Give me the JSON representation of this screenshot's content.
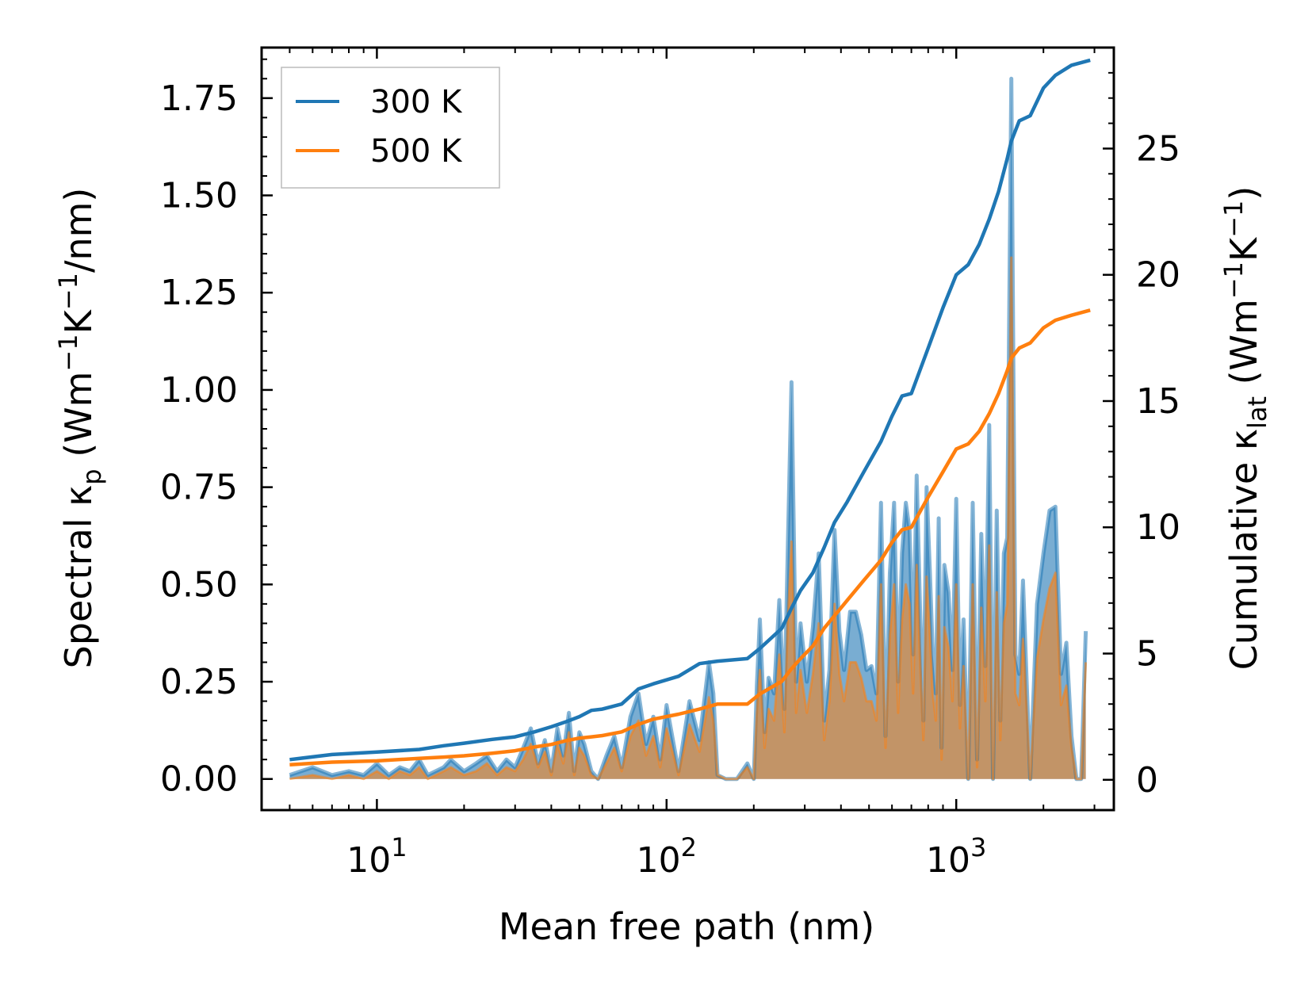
{
  "chart_data": {
    "type": "line",
    "title": "",
    "xlabel": "Mean free path (nm)",
    "ylabel_left": {
      "main": "Spectral κ",
      "sub": "p",
      "unit_open": " (Wm",
      "sup1": "−1",
      "mid": "K",
      "sup2": "−1",
      "unit_close": "/nm)"
    },
    "ylabel_right": {
      "main": "Cumulative κ",
      "sub": "lat",
      "unit_open": " (Wm",
      "sup1": "−1",
      "mid": "K",
      "sup2": "−1",
      "unit_close": ")"
    },
    "xscale": "log",
    "xlim": [
      4,
      3500
    ],
    "ylim_left": [
      -0.08,
      1.88
    ],
    "ylim_right": [
      -1.2,
      29.0
    ],
    "x_ticks": [
      {
        "value": 10,
        "base": "10",
        "exp": "1"
      },
      {
        "value": 100,
        "base": "10",
        "exp": "2"
      },
      {
        "value": 1000,
        "base": "10",
        "exp": "3"
      }
    ],
    "left_ticks": [
      0.0,
      0.25,
      0.5,
      0.75,
      1.0,
      1.25,
      1.5,
      1.75
    ],
    "left_tick_labels": [
      "0.00",
      "0.25",
      "0.50",
      "0.75",
      "1.00",
      "1.25",
      "1.50",
      "1.75"
    ],
    "right_ticks": [
      0,
      5,
      10,
      15,
      20,
      25
    ],
    "right_tick_labels": [
      "0",
      "5",
      "10",
      "15",
      "20",
      "25"
    ],
    "legend_position": "top-left",
    "series": [
      {
        "name": "300 K",
        "color": "#1f77b4",
        "cumulative_x": [
          5,
          7,
          10,
          14,
          17,
          20,
          25,
          30,
          35,
          40,
          45,
          50,
          55,
          60,
          70,
          80,
          90,
          110,
          130,
          150,
          190,
          210,
          250,
          270,
          290,
          320,
          350,
          380,
          420,
          480,
          550,
          600,
          650,
          700,
          800,
          900,
          1000,
          1100,
          1200,
          1300,
          1400,
          1500,
          1550,
          1650,
          1800,
          2000,
          2200,
          2500,
          2900
        ],
        "cumulative_y": [
          0.8,
          1.0,
          1.1,
          1.2,
          1.35,
          1.45,
          1.6,
          1.7,
          1.9,
          2.1,
          2.3,
          2.5,
          2.75,
          2.8,
          3.0,
          3.6,
          3.8,
          4.1,
          4.6,
          4.7,
          4.8,
          5.2,
          6.0,
          6.8,
          7.5,
          8.2,
          9.2,
          10.2,
          11.0,
          12.2,
          13.4,
          14.4,
          15.2,
          15.3,
          17.1,
          18.7,
          20.0,
          20.4,
          21.2,
          22.2,
          23.3,
          24.6,
          25.3,
          26.1,
          26.3,
          27.4,
          27.9,
          28.3,
          28.5
        ],
        "spectral_x": [
          5,
          6,
          7,
          8,
          9,
          10,
          11,
          12,
          13,
          14,
          15,
          17,
          18,
          20,
          22,
          24,
          26,
          28,
          30,
          32,
          34,
          36,
          38,
          40,
          42,
          44,
          46,
          48,
          50,
          52,
          55,
          58,
          62,
          66,
          70,
          75,
          80,
          85,
          90,
          95,
          100,
          110,
          120,
          130,
          140,
          145,
          150,
          160,
          175,
          190,
          200,
          205,
          210,
          218,
          225,
          235,
          245,
          255,
          262,
          270,
          280,
          290,
          305,
          320,
          335,
          350,
          365,
          380,
          395,
          410,
          430,
          450,
          470,
          490,
          510,
          530,
          550,
          570,
          590,
          610,
          630,
          650,
          670,
          690,
          710,
          730,
          750,
          770,
          790,
          810,
          830,
          850,
          870,
          890,
          910,
          940,
          970,
          1000,
          1030,
          1060,
          1100,
          1140,
          1180,
          1220,
          1260,
          1300,
          1340,
          1380,
          1420,
          1460,
          1500,
          1550,
          1600,
          1650,
          1700,
          1800,
          1900,
          2000,
          2100,
          2200,
          2300,
          2400,
          2500,
          2600,
          2700,
          2800
        ],
        "spectral_y": [
          0.01,
          0.03,
          0.01,
          0.02,
          0.01,
          0.04,
          0.01,
          0.03,
          0.02,
          0.05,
          0.01,
          0.03,
          0.05,
          0.02,
          0.04,
          0.06,
          0.02,
          0.05,
          0.03,
          0.08,
          0.13,
          0.04,
          0.1,
          0.02,
          0.13,
          0.06,
          0.17,
          0.02,
          0.12,
          0.09,
          0.02,
          0.0,
          0.06,
          0.11,
          0.03,
          0.16,
          0.22,
          0.09,
          0.16,
          0.05,
          0.19,
          0.02,
          0.2,
          0.1,
          0.3,
          0.22,
          0.01,
          0.0,
          0.0,
          0.04,
          0.0,
          0.24,
          0.41,
          0.12,
          0.26,
          0.22,
          0.46,
          0.18,
          0.58,
          1.02,
          0.25,
          0.4,
          0.25,
          0.39,
          0.58,
          0.15,
          0.28,
          0.64,
          0.38,
          0.28,
          0.43,
          0.43,
          0.37,
          0.28,
          0.29,
          0.22,
          0.71,
          0.11,
          0.53,
          0.71,
          0.25,
          0.58,
          0.71,
          0.64,
          0.32,
          0.78,
          0.44,
          0.15,
          0.75,
          0.54,
          0.32,
          0.22,
          0.67,
          0.08,
          0.55,
          0.48,
          0.28,
          0.72,
          0.19,
          0.41,
          0.0,
          0.71,
          0.05,
          0.63,
          0.29,
          0.91,
          0.0,
          0.69,
          0.15,
          0.58,
          0.62,
          1.8,
          0.32,
          0.27,
          0.51,
          0.0,
          0.45,
          0.58,
          0.69,
          0.7,
          0.27,
          0.35,
          0.11,
          0.0,
          0.0,
          0.38
        ],
        "spectral_y_500": [
          0.0,
          0.01,
          0.0,
          0.01,
          0.0,
          0.02,
          0.0,
          0.02,
          0.01,
          0.03,
          0.0,
          0.02,
          0.03,
          0.01,
          0.02,
          0.04,
          0.01,
          0.03,
          0.02,
          0.05,
          0.09,
          0.03,
          0.07,
          0.01,
          0.09,
          0.04,
          0.12,
          0.01,
          0.08,
          0.06,
          0.01,
          0.0,
          0.04,
          0.08,
          0.02,
          0.11,
          0.15,
          0.06,
          0.11,
          0.03,
          0.13,
          0.01,
          0.14,
          0.07,
          0.21,
          0.15,
          0.01,
          0.0,
          0.0,
          0.03,
          0.0,
          0.17,
          0.28,
          0.08,
          0.18,
          0.15,
          0.32,
          0.12,
          0.4,
          0.61,
          0.17,
          0.28,
          0.17,
          0.27,
          0.4,
          0.1,
          0.2,
          0.45,
          0.27,
          0.2,
          0.3,
          0.3,
          0.26,
          0.2,
          0.2,
          0.15,
          0.5,
          0.08,
          0.37,
          0.5,
          0.17,
          0.41,
          0.5,
          0.45,
          0.22,
          0.55,
          0.31,
          0.1,
          0.52,
          0.38,
          0.22,
          0.15,
          0.47,
          0.05,
          0.39,
          0.34,
          0.2,
          0.5,
          0.13,
          0.29,
          0.0,
          0.5,
          0.03,
          0.44,
          0.2,
          0.6,
          0.0,
          0.48,
          0.1,
          0.4,
          0.45,
          1.34,
          0.22,
          0.19,
          0.36,
          0.0,
          0.31,
          0.41,
          0.49,
          0.53,
          0.19,
          0.24,
          0.08,
          0.0,
          0.0,
          0.3
        ]
      },
      {
        "name": "500 K",
        "color": "#ff7f0e",
        "cumulative_x": [
          5,
          7,
          10,
          14,
          17,
          20,
          25,
          30,
          35,
          40,
          45,
          50,
          55,
          60,
          70,
          80,
          90,
          110,
          130,
          150,
          190,
          210,
          250,
          270,
          290,
          320,
          350,
          380,
          420,
          480,
          550,
          600,
          650,
          700,
          800,
          900,
          1000,
          1100,
          1200,
          1300,
          1400,
          1500,
          1550,
          1650,
          1800,
          2000,
          2200,
          2500,
          2900
        ],
        "cumulative_y": [
          0.6,
          0.7,
          0.75,
          0.85,
          0.9,
          0.95,
          1.05,
          1.15,
          1.3,
          1.4,
          1.55,
          1.65,
          1.7,
          1.75,
          1.9,
          2.2,
          2.4,
          2.6,
          2.8,
          3.0,
          3.0,
          3.4,
          3.9,
          4.4,
          4.8,
          5.3,
          6.0,
          6.5,
          7.1,
          7.9,
          8.7,
          9.4,
          9.9,
          10.0,
          11.2,
          12.2,
          13.1,
          13.3,
          13.8,
          14.5,
          15.3,
          16.2,
          16.7,
          17.1,
          17.3,
          17.9,
          18.2,
          18.4,
          18.6
        ]
      }
    ]
  }
}
